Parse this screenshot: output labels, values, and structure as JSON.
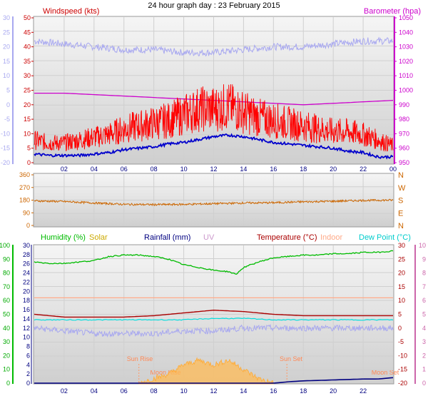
{
  "page_title": "24 hour graph day : 23 February 2015",
  "colors": {
    "windspeed": "#ff0000",
    "wind_avg": "#0000cc",
    "barometer": "#cc00cc",
    "temperature_trace": "#a8a8f0",
    "direction": "#cc6600",
    "humidity": "#00bb00",
    "solar": "#ccaa00",
    "rainfall": "#000080",
    "uv": "#cc99cc",
    "temperature": "#aa0000",
    "indoor": "#ffaa88",
    "dewpoint": "#00dddd",
    "sun": "#ff9966"
  },
  "x_tick_labels": [
    "02",
    "04",
    "06",
    "08",
    "10",
    "12",
    "14",
    "16",
    "18",
    "20",
    "22",
    "00"
  ],
  "bottom_x_tick_labels": [
    "02",
    "04",
    "06",
    "08",
    "10",
    "12",
    "14",
    "16",
    "18",
    "20",
    "22"
  ],
  "chart_data": [
    {
      "type": "line",
      "name": "wind-barometer",
      "title": "24 hour graph day : 23 February 2015",
      "left_axis_label": "Windspeed (kts)",
      "right_axis_label": "Barometer (hpa)",
      "left_ticks": [
        "50",
        "45",
        "40",
        "35",
        "30",
        "25",
        "20",
        "15",
        "10",
        "5",
        "0"
      ],
      "outer_left_ticks": [
        "30",
        "25",
        "20",
        "15",
        "10",
        "5",
        "0",
        "-5",
        "-10",
        "-15",
        "-20"
      ],
      "right_ticks": [
        "1050",
        "1040",
        "1030",
        "1020",
        "1010",
        "1000",
        "990",
        "980",
        "970",
        "960",
        "950"
      ],
      "xlim_hours": [
        0,
        24
      ],
      "ylim": [
        0,
        50
      ],
      "y2lim": [
        950,
        1050
      ],
      "series": [
        {
          "key": "gust",
          "x": [
            0,
            1,
            2,
            3,
            4,
            5,
            6,
            7,
            8,
            9,
            10,
            11,
            12,
            13,
            14,
            15,
            16,
            17,
            18,
            19,
            20,
            21,
            22,
            23,
            24
          ],
          "values": [
            8,
            7,
            7,
            8,
            9,
            10,
            12,
            13,
            14,
            15,
            17,
            19,
            19,
            20,
            18,
            16,
            15,
            14,
            13,
            12,
            11,
            11,
            10,
            8,
            6
          ]
        },
        {
          "key": "avg",
          "x": [
            0,
            1,
            2,
            3,
            4,
            5,
            6,
            7,
            8,
            9,
            10,
            11,
            12,
            13,
            14,
            15,
            16,
            17,
            18,
            19,
            20,
            21,
            22,
            23,
            24
          ],
          "values": [
            3,
            2.5,
            2.5,
            2.5,
            3,
            3.5,
            4.5,
            5,
            5.5,
            6.5,
            7,
            8,
            9,
            9.5,
            9,
            8,
            7,
            6.5,
            6,
            5.5,
            5,
            4,
            3.5,
            2,
            2
          ]
        },
        {
          "key": "barometer",
          "x": [
            0,
            2,
            4,
            6,
            8,
            10,
            12,
            14,
            16,
            18,
            20,
            22,
            24
          ],
          "values": [
            998,
            998,
            997,
            996,
            995,
            994,
            993,
            992,
            991,
            990,
            991,
            992,
            993
          ]
        },
        {
          "key": "temperature-trace",
          "x": [
            0,
            2,
            4,
            6,
            8,
            10,
            12,
            14,
            16,
            18,
            20,
            22,
            24
          ],
          "values": [
            22,
            21,
            20,
            19,
            19,
            18,
            18,
            19,
            20,
            20,
            21,
            22,
            22
          ]
        }
      ]
    },
    {
      "type": "line",
      "name": "wind-direction",
      "left_ticks": [
        "360",
        "270",
        "180",
        "90",
        "0"
      ],
      "right_labels": [
        "N",
        "W",
        "S",
        "E",
        "N"
      ],
      "ylim": [
        0,
        360
      ],
      "series": [
        {
          "key": "direction",
          "x": [
            0,
            2,
            4,
            6,
            8,
            10,
            12,
            14,
            16,
            18,
            20,
            22,
            24
          ],
          "values": [
            175,
            170,
            160,
            150,
            148,
            150,
            155,
            160,
            162,
            168,
            172,
            178,
            180
          ]
        }
      ]
    },
    {
      "type": "line",
      "name": "humidity-temperature",
      "legend": [
        "Humidity (%)",
        "Solar",
        "Rainfall (mm)",
        "UV",
        "Temperature (°C)",
        "Indoor",
        "Dew Point (°C)"
      ],
      "outer_left_ticks": [
        "100",
        "90",
        "80",
        "70",
        "60",
        "50",
        "40",
        "30",
        "20",
        "10",
        "0"
      ],
      "inner_left_ticks": [
        "30",
        "28",
        "26",
        "24",
        "22",
        "20",
        "18",
        "16",
        "14",
        "12",
        "10",
        "8",
        "6",
        "4",
        "2",
        "0"
      ],
      "right_ticks_temp": [
        "30",
        "25",
        "20",
        "15",
        "10",
        "5",
        "0",
        "-5",
        "-10",
        "-15",
        "-20"
      ],
      "right_ticks_uv": [
        "10",
        "9",
        "8",
        "7",
        "6",
        "5",
        "4",
        "3",
        "2",
        "1",
        "0"
      ],
      "annotations": [
        "Sun Rise",
        "Moon Rise",
        "Sun Set",
        "Moon Set"
      ],
      "series": [
        {
          "key": "humidity",
          "x": [
            0,
            1,
            2,
            3,
            4,
            5,
            6,
            7,
            8,
            9,
            10,
            11,
            12,
            13,
            13.5,
            14,
            15,
            16,
            17,
            18,
            19,
            20,
            21,
            22,
            23,
            24
          ],
          "values": [
            88,
            87,
            87,
            88,
            89,
            92,
            93,
            93,
            92,
            90,
            86,
            84,
            82,
            81,
            79,
            84,
            88,
            91,
            92,
            93,
            93,
            94,
            94,
            95,
            95,
            96
          ]
        },
        {
          "key": "temperature",
          "x": [
            0,
            2,
            4,
            6,
            8,
            10,
            12,
            14,
            16,
            18,
            20,
            22,
            24
          ],
          "values": [
            5,
            4,
            4,
            4,
            4.5,
            5.5,
            6.5,
            6,
            5,
            4.5,
            4.5,
            4.5,
            4.5
          ]
        },
        {
          "key": "indoor",
          "x": [
            0,
            24
          ],
          "values": [
            11,
            11
          ]
        },
        {
          "key": "dewpoint",
          "x": [
            0,
            2,
            4,
            6,
            8,
            10,
            12,
            14,
            16,
            18,
            20,
            22,
            24
          ],
          "values": [
            3,
            3,
            3,
            3,
            3,
            3,
            3.5,
            3.5,
            3,
            3,
            3,
            3,
            3
          ]
        },
        {
          "key": "temperature-trace",
          "x": [
            0,
            2,
            4,
            6,
            8,
            10,
            12,
            14,
            16,
            18,
            20,
            22,
            24
          ],
          "values": [
            0,
            -1,
            -2,
            -2,
            -2,
            -1,
            -1,
            0,
            0,
            0,
            0,
            0,
            0
          ]
        },
        {
          "key": "solar",
          "x": [
            7,
            8,
            9,
            10,
            11,
            12,
            13,
            14,
            15,
            16
          ],
          "values": [
            0,
            1,
            2,
            4,
            5,
            4,
            5,
            3,
            1,
            0
          ]
        },
        {
          "key": "rainfall",
          "x": [
            0,
            16,
            17,
            18,
            19,
            20,
            21,
            22,
            23,
            24
          ],
          "values": [
            0,
            0,
            0.3,
            0.5,
            0.6,
            0.7,
            0.8,
            0.9,
            0.9,
            1.2
          ]
        }
      ]
    }
  ]
}
